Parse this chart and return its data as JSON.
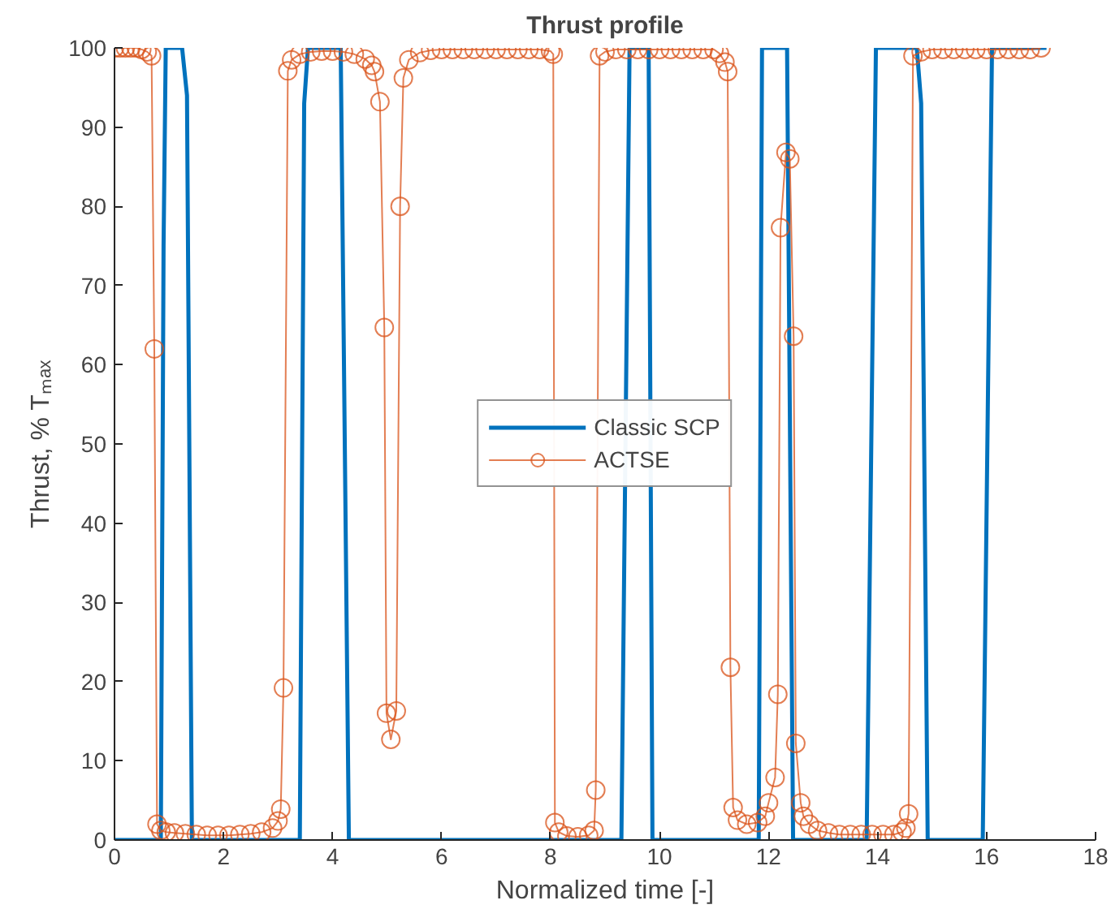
{
  "chart_data": {
    "type": "line",
    "title": "Thrust profile",
    "xlabel": "Normalized time [-]",
    "ylabel": "Thrust, % Tₘₐₓ",
    "xlim": [
      0,
      18
    ],
    "ylim": [
      0,
      100
    ],
    "xticks": [
      0,
      2,
      4,
      6,
      8,
      10,
      12,
      14,
      16,
      18
    ],
    "yticks": [
      0,
      10,
      20,
      30,
      40,
      50,
      60,
      70,
      80,
      90,
      100
    ],
    "grid": false,
    "legend": "center",
    "series": [
      {
        "name": "Classic SCP",
        "color": "#0072bd",
        "marker": "none",
        "x": [
          0,
          0.85,
          0.9,
          0.94,
          1.24,
          1.33,
          1.42,
          3.4,
          3.48,
          3.55,
          4.15,
          4.3,
          9.3,
          9.45,
          9.8,
          9.87,
          11.82,
          11.88,
          12.34,
          12.45,
          13.8,
          13.97,
          14.72,
          14.8,
          14.92,
          15.93,
          16.1,
          17.1
        ],
        "values": [
          0,
          0,
          75,
          100,
          100,
          94,
          0,
          0,
          93,
          100,
          100,
          0,
          0,
          100,
          100,
          0,
          0,
          100,
          100,
          0,
          0,
          100,
          100,
          93,
          0,
          0,
          100,
          100
        ]
      },
      {
        "name": "ACTSE",
        "color": "#d95319",
        "marker": "circle",
        "x": [
          0,
          0.1,
          0.2,
          0.3,
          0.4,
          0.5,
          0.6,
          0.68,
          0.73,
          0.78,
          0.85,
          0.95,
          1.1,
          1.3,
          1.5,
          1.7,
          1.9,
          2.1,
          2.3,
          2.5,
          2.7,
          2.9,
          3.0,
          3.05,
          3.1,
          3.18,
          3.25,
          3.4,
          3.6,
          3.8,
          4.0,
          4.2,
          4.4,
          4.6,
          4.72,
          4.77,
          4.87,
          4.95,
          4.99,
          5.07,
          5.17,
          5.24,
          5.3,
          5.4,
          5.6,
          5.8,
          6.0,
          6.2,
          6.4,
          6.6,
          6.8,
          7.0,
          7.2,
          7.4,
          7.6,
          7.8,
          8.0,
          8.05,
          8.08,
          8.15,
          8.3,
          8.5,
          8.7,
          8.8,
          8.83,
          8.9,
          9.0,
          9.2,
          9.4,
          9.6,
          9.8,
          10.0,
          10.2,
          10.4,
          10.6,
          10.8,
          11.0,
          11.1,
          11.2,
          11.25,
          11.3,
          11.35,
          11.43,
          11.6,
          11.8,
          11.94,
          12.0,
          12.12,
          12.17,
          12.22,
          12.32,
          12.39,
          12.46,
          12.5,
          12.59,
          12.64,
          12.75,
          12.9,
          13.1,
          13.3,
          13.5,
          13.7,
          13.9,
          14.1,
          14.3,
          14.45,
          14.52,
          14.57,
          14.65,
          14.8,
          15.0,
          15.2,
          15.4,
          15.6,
          15.8,
          16.0,
          16.2,
          16.4,
          16.6,
          16.8,
          17.0
        ],
        "values": [
          100,
          100,
          100,
          100,
          100,
          99.8,
          99.5,
          99,
          62,
          2,
          1.2,
          1,
          0.9,
          0.8,
          0.7,
          0.6,
          0.6,
          0.6,
          0.7,
          0.8,
          1,
          1.5,
          2.4,
          3.9,
          19.2,
          97.1,
          98.5,
          99.2,
          99.5,
          99.6,
          99.6,
          99.5,
          99.2,
          98.6,
          97.8,
          97,
          93.2,
          64.7,
          16,
          12.7,
          16.3,
          80,
          96.2,
          98.5,
          99.4,
          99.7,
          99.8,
          99.8,
          99.8,
          99.8,
          99.8,
          99.8,
          99.8,
          99.8,
          99.8,
          99.8,
          99.6,
          99.2,
          2.2,
          1,
          0.5,
          0.4,
          0.6,
          1.2,
          6.3,
          99,
          99.5,
          99.8,
          99.8,
          99.8,
          99.8,
          99.8,
          99.8,
          99.8,
          99.8,
          99.8,
          99.8,
          99.3,
          98.2,
          97,
          21.8,
          4.1,
          2.5,
          2,
          2.2,
          3,
          4.7,
          7.9,
          18.4,
          77.3,
          86.8,
          86,
          63.6,
          12.2,
          4.7,
          3,
          2,
          1.2,
          0.9,
          0.7,
          0.7,
          0.7,
          0.7,
          0.7,
          0.7,
          1,
          1.5,
          3.3,
          99,
          99.5,
          99.8,
          99.8,
          99.8,
          99.8,
          99.8,
          99.8,
          99.8,
          99.8,
          99.8,
          99.8,
          100
        ]
      }
    ]
  }
}
